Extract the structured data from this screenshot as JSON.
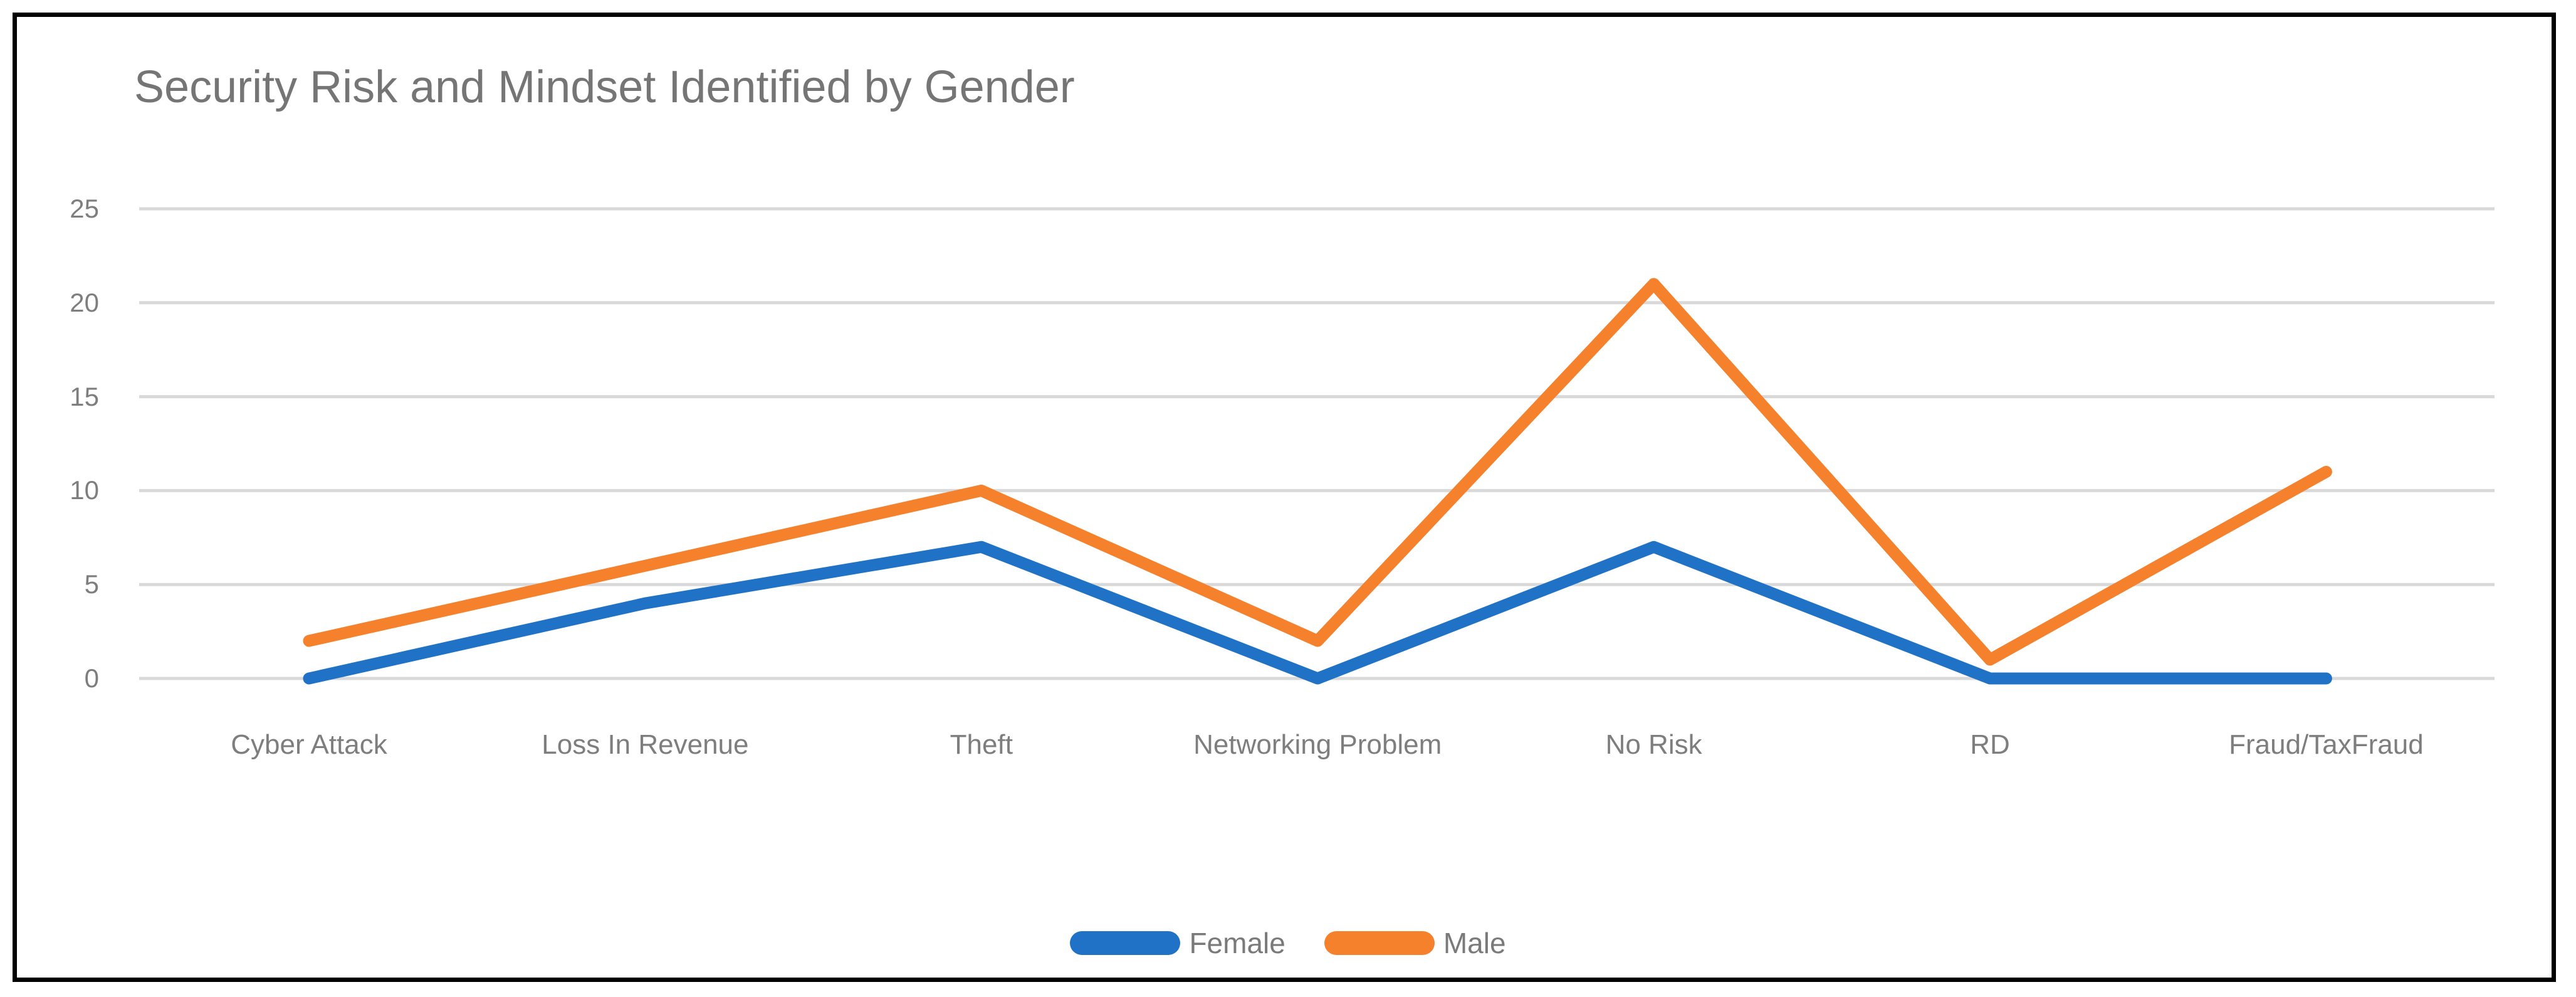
{
  "title": "Security Risk and Mindset Identified by Gender",
  "colors": {
    "female_line": "#1f72c6",
    "male_line": "#f5812c",
    "gridline": "#d9d9d9",
    "title_text": "#757575",
    "axis_text": "#7e7e7e",
    "legend_text": "#7a7a7a",
    "frame_border": "#000000",
    "background": "#ffffff"
  },
  "chart_data": {
    "type": "line",
    "title": "Security Risk and Mindset Identified by Gender",
    "categories": [
      "Cyber Attack",
      "Loss In Revenue",
      "Theft",
      "Networking Problem",
      "No Risk",
      "RD",
      "Fraud/TaxFraud"
    ],
    "series": [
      {
        "name": "Female",
        "color": "#1f72c6",
        "values": [
          0,
          4,
          7,
          0,
          7,
          0,
          0
        ]
      },
      {
        "name": "Male",
        "color": "#f5812c",
        "values": [
          2,
          6,
          10,
          2,
          21,
          1,
          11
        ]
      }
    ],
    "yticks": [
      0,
      5,
      10,
      15,
      20,
      25
    ],
    "ylim": [
      0,
      25
    ],
    "xlabel": "",
    "ylabel": "",
    "grid": "horizontal",
    "legend_position": "bottom"
  }
}
